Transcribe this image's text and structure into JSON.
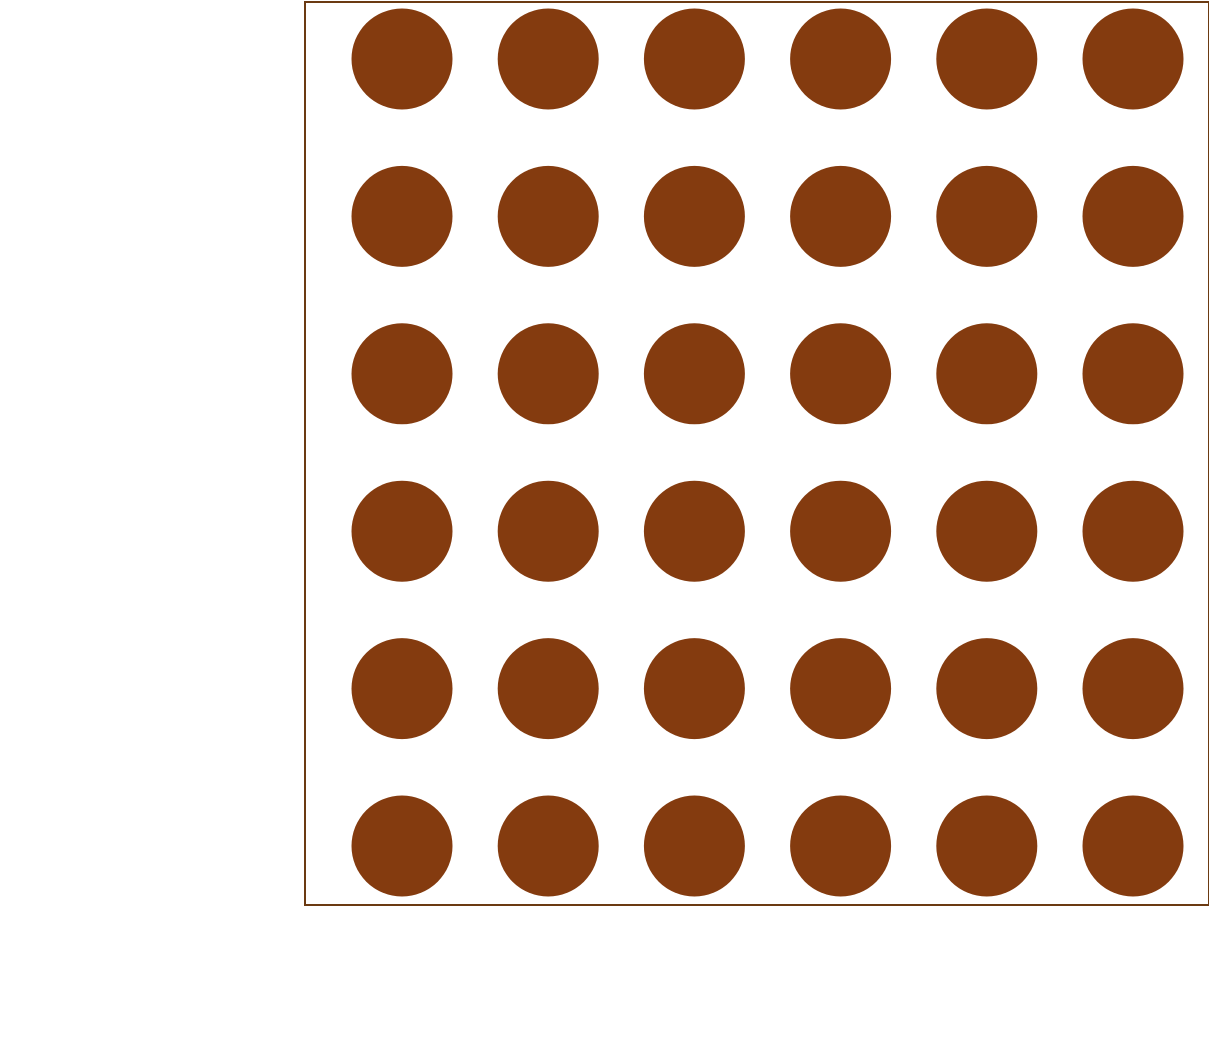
{
  "dot_grid": {
    "rows": 6,
    "columns": 6,
    "total_dots": 36,
    "dot_color": "#843b0f",
    "border_color": "#6b3a12",
    "background_color": "#ffffff"
  }
}
